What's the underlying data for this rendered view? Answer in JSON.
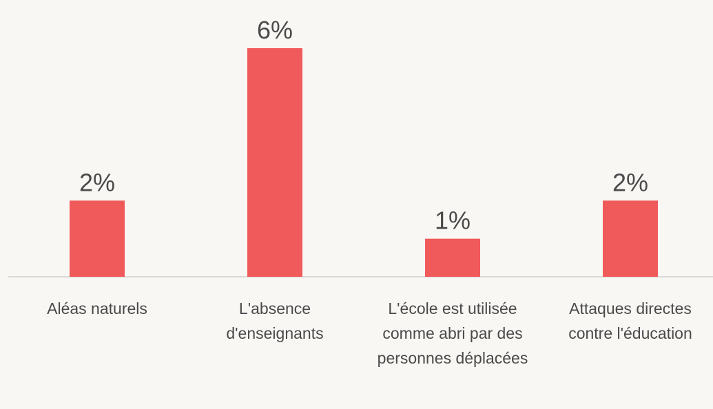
{
  "chart_data": {
    "type": "bar",
    "categories": [
      "Aléas naturels",
      "L'absence d'enseignants",
      "L'école est utilisée comme abri par des personnes déplacées",
      "Attaques directes contre l'éducation"
    ],
    "values": [
      2,
      6,
      1,
      2
    ],
    "value_labels": [
      "2%",
      "6%",
      "1%",
      "2%"
    ],
    "color": "#f05a5a",
    "ylim": [
      0,
      6
    ]
  }
}
